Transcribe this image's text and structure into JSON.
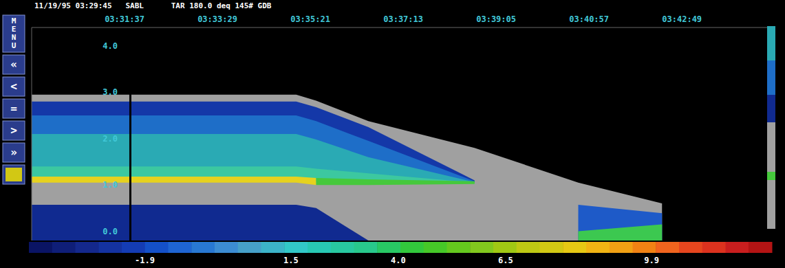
{
  "chart_data": {
    "type": "heatmap",
    "title": "11/19/95 03:29:45   SABL      TAR 180.0 deq 145# GDB",
    "menu": {
      "title": "MENU",
      "buttons": [
        "«",
        "<",
        "=",
        ">",
        "»"
      ]
    },
    "x": [
      12585,
      12704,
      12904,
      12928,
      12991,
      13119,
      13244,
      13345
    ],
    "layers": [
      {
        "color": "#a0a0a0",
        "lo": [
          -0.2,
          -0.2,
          -0.2,
          -0.2,
          -0.2,
          -0.2,
          -0.2,
          -0.2
        ],
        "hi": [
          2.95,
          2.95,
          2.95,
          2.82,
          2.38,
          1.8,
          1.05,
          0.6
        ]
      },
      {
        "color": "#102a90",
        "lo": [
          -0.2,
          -0.2,
          -0.2,
          -0.2,
          -0.2,
          null,
          null,
          null
        ],
        "hi": [
          0.57,
          0.57,
          0.57,
          0.5,
          -0.2,
          null,
          null,
          null
        ]
      },
      {
        "color": "#1438a8",
        "lo": [
          1.1,
          1.1,
          1.1,
          1.08,
          1.05,
          1.05,
          null,
          null
        ],
        "hi": [
          2.8,
          2.8,
          2.8,
          2.68,
          2.25,
          1.1,
          null,
          null
        ]
      },
      {
        "color": "#1e6ec8",
        "lo": [
          1.1,
          1.1,
          1.1,
          1.08,
          1.05,
          1.05,
          null,
          null
        ],
        "hi": [
          2.5,
          2.5,
          2.5,
          2.38,
          1.95,
          1.08,
          null,
          null
        ]
      },
      {
        "color": "#2aaab4",
        "lo": [
          1.1,
          1.1,
          1.1,
          1.08,
          1.05,
          1.05,
          null,
          null
        ],
        "hi": [
          2.1,
          2.1,
          2.1,
          1.98,
          1.6,
          1.06,
          null,
          null
        ]
      },
      {
        "color": "#3cc8a0",
        "lo": [
          1.1,
          1.1,
          1.1,
          1.08,
          1.05,
          1.04,
          null,
          null
        ],
        "hi": [
          1.4,
          1.4,
          1.4,
          1.35,
          1.25,
          1.05,
          null,
          null
        ]
      },
      {
        "color": "#e6d21e",
        "lo": [
          1.05,
          1.05,
          1.05,
          1.0,
          null,
          null,
          null,
          null
        ],
        "hi": [
          1.18,
          1.18,
          1.18,
          1.15,
          null,
          null,
          null,
          null
        ]
      },
      {
        "color": "#46c83c",
        "lo": [
          null,
          null,
          null,
          1.0,
          1.0,
          1.02,
          null,
          null
        ],
        "hi": [
          null,
          null,
          null,
          1.15,
          1.12,
          1.08,
          null,
          null
        ]
      },
      {
        "color": "#1e5ac8",
        "lo": [
          null,
          null,
          null,
          null,
          null,
          null,
          -0.2,
          -0.2
        ],
        "hi": [
          null,
          null,
          null,
          null,
          null,
          null,
          0.57,
          0.39
        ]
      },
      {
        "color": "#3cc850",
        "lo": [
          null,
          null,
          null,
          null,
          null,
          null,
          -0.2,
          -0.2
        ],
        "hi": [
          null,
          null,
          null,
          null,
          null,
          null,
          0.0,
          0.15
        ]
      }
    ],
    "cursor": 12704,
    "xlim": [
      12585,
      13480
    ],
    "xticks": [
      {
        "value": 12697,
        "label": "03:31:37"
      },
      {
        "value": 12809,
        "label": "03:33:29"
      },
      {
        "value": 12921,
        "label": "03:35:21"
      },
      {
        "value": 13033,
        "label": "03:37:13"
      },
      {
        "value": 13145,
        "label": "03:39:05"
      },
      {
        "value": 13257,
        "label": "03:40:57"
      },
      {
        "value": 13369,
        "label": "03:42:49"
      }
    ],
    "ylim": [
      -0.2,
      4.4
    ],
    "yticks": [
      {
        "value": 0,
        "label": "0.0"
      },
      {
        "value": 1,
        "label": "1.0"
      },
      {
        "value": 2,
        "label": "2.0"
      },
      {
        "value": 3,
        "label": "3.0"
      },
      {
        "value": 4,
        "label": "4.0"
      }
    ],
    "grid": true,
    "colorbar": {
      "range": [
        -4.6,
        12.7
      ],
      "ticks": [
        -1.9,
        1.5,
        {
          "value": 4,
          "label": "4.0"
        },
        6.5,
        9.9
      ],
      "colors": [
        "#0a1464",
        "#0f1e78",
        "#14288c",
        "#1432a0",
        "#143cb4",
        "#1450c8",
        "#1e64d2",
        "#2878d2",
        "#3c8cd2",
        "#46a0c8",
        "#3cb4c8",
        "#32c8c8",
        "#28c8b4",
        "#28c8a0",
        "#28c88c",
        "#28c864",
        "#32c83c",
        "#46c828",
        "#64c81e",
        "#82c81e",
        "#a0c814",
        "#bec814",
        "#d2c814",
        "#e6c814",
        "#f0b414",
        "#f0a014",
        "#f08214",
        "#f0641e",
        "#e6461e",
        "#dc321e",
        "#c81e1e",
        "#b41414"
      ]
    }
  }
}
